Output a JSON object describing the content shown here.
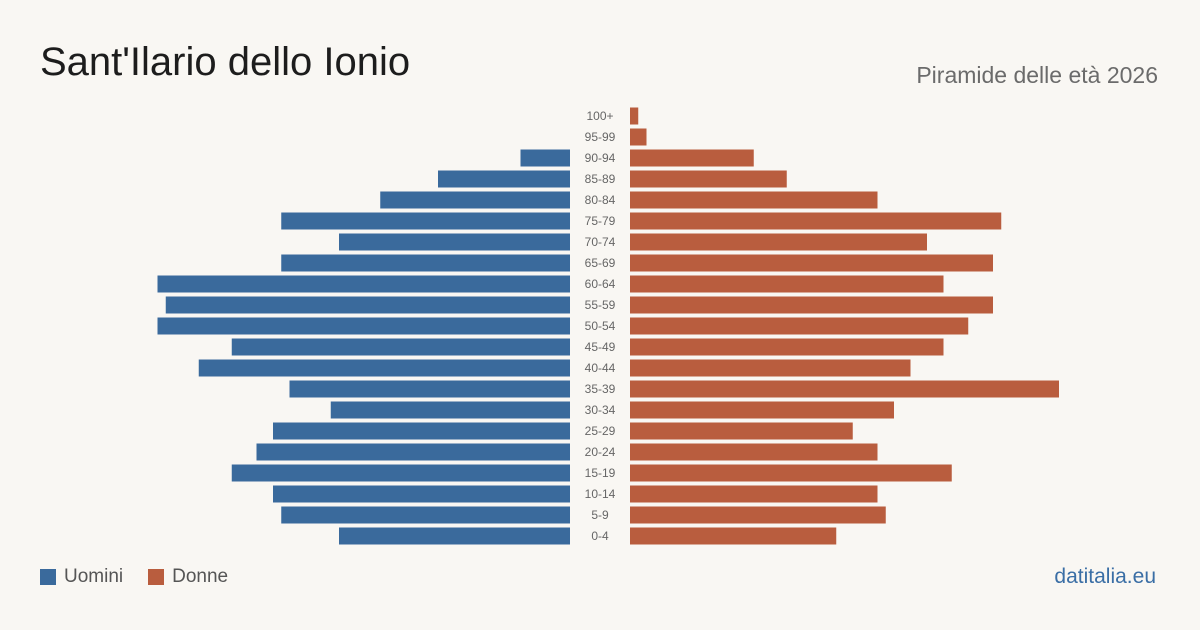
{
  "title": "Sant'Ilario dello Ionio",
  "subtitle": "Piramide delle età 2026",
  "source": "datitalia.eu",
  "colors": {
    "men": "#3a6a9c",
    "women": "#b95d3e"
  },
  "chart_data": {
    "type": "bar",
    "orientation": "horizontal-pyramid",
    "categories": [
      "100+",
      "95-99",
      "90-94",
      "85-89",
      "80-84",
      "75-79",
      "70-74",
      "65-69",
      "60-64",
      "55-59",
      "50-54",
      "45-49",
      "40-44",
      "35-39",
      "30-34",
      "25-29",
      "20-24",
      "15-19",
      "10-14",
      "5-9",
      "0-4"
    ],
    "series": [
      {
        "name": "Uomini",
        "values": [
          0,
          0,
          6,
          16,
          23,
          35,
          28,
          35,
          50,
          49,
          50,
          41,
          45,
          34,
          29,
          36,
          38,
          41,
          36,
          35,
          28
        ]
      },
      {
        "name": "Donne",
        "values": [
          1,
          2,
          15,
          19,
          30,
          45,
          36,
          44,
          38,
          44,
          41,
          38,
          34,
          52,
          32,
          27,
          30,
          39,
          30,
          31,
          25
        ]
      }
    ],
    "xlim": [
      0,
      60
    ],
    "legend_position": "bottom-left",
    "grid": false
  }
}
